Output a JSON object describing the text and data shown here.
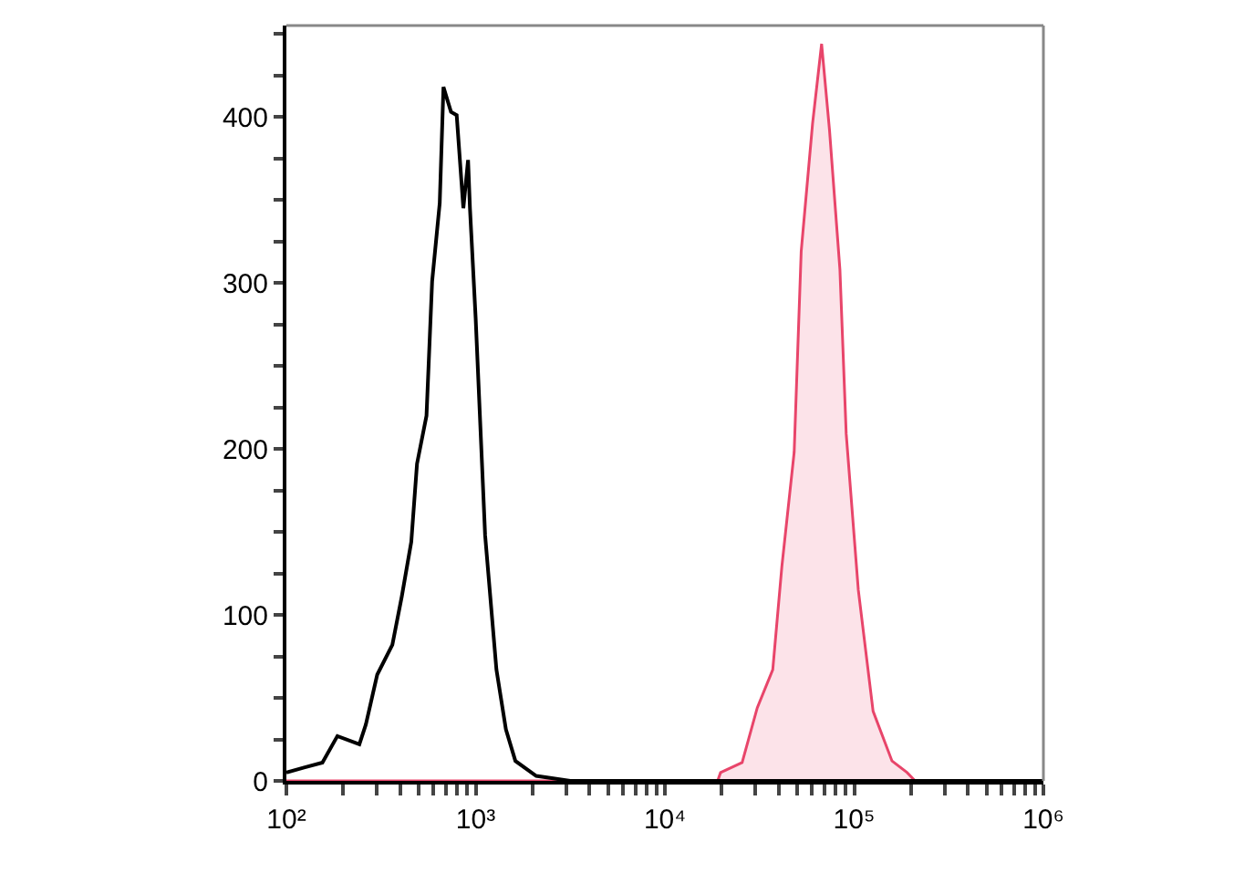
{
  "chart_data": {
    "type": "line",
    "log": "x",
    "marker": "none",
    "line_style": "solid",
    "xlim": [
      100,
      1000000
    ],
    "ylim": [
      0,
      455
    ],
    "xticks": [
      {
        "value": 100,
        "label": "10²"
      },
      {
        "value": 200,
        "label": null
      },
      {
        "value": 300,
        "label": null
      },
      {
        "value": 400,
        "label": null
      },
      {
        "value": 500,
        "label": null
      },
      {
        "value": 600,
        "label": null
      },
      {
        "value": 700,
        "label": null
      },
      {
        "value": 800,
        "label": null
      },
      {
        "value": 900,
        "label": null
      },
      {
        "value": 1000,
        "label": "10³"
      },
      {
        "value": 2000,
        "label": null
      },
      {
        "value": 3000,
        "label": null
      },
      {
        "value": 4000,
        "label": null
      },
      {
        "value": 5000,
        "label": null
      },
      {
        "value": 6000,
        "label": null
      },
      {
        "value": 7000,
        "label": null
      },
      {
        "value": 8000,
        "label": null
      },
      {
        "value": 9000,
        "label": null
      },
      {
        "value": 10000,
        "label": "10⁴"
      },
      {
        "value": 20000,
        "label": null
      },
      {
        "value": 30000,
        "label": null
      },
      {
        "value": 40000,
        "label": null
      },
      {
        "value": 50000,
        "label": null
      },
      {
        "value": 60000,
        "label": null
      },
      {
        "value": 70000,
        "label": null
      },
      {
        "value": 80000,
        "label": null
      },
      {
        "value": 90000,
        "label": null
      },
      {
        "value": 100000,
        "label": "10⁵"
      },
      {
        "value": 200000,
        "label": null
      },
      {
        "value": 300000,
        "label": null
      },
      {
        "value": 400000,
        "label": null
      },
      {
        "value": 500000,
        "label": null
      },
      {
        "value": 600000,
        "label": null
      },
      {
        "value": 700000,
        "label": null
      },
      {
        "value": 800000,
        "label": null
      },
      {
        "value": 900000,
        "label": null
      },
      {
        "value": 1000000,
        "label": "10⁶"
      }
    ],
    "yticks": [
      0,
      {
        "value": 25,
        "label": null
      },
      {
        "value": 50,
        "label": null
      },
      {
        "value": 75,
        "label": null
      },
      100,
      {
        "value": 125,
        "label": null
      },
      {
        "value": 150,
        "label": null
      },
      {
        "value": 175,
        "label": null
      },
      200,
      {
        "value": 225,
        "label": null
      },
      {
        "value": 250,
        "label": null
      },
      {
        "value": 275,
        "label": null
      },
      300,
      {
        "value": 325,
        "label": null
      },
      {
        "value": 350,
        "label": null
      },
      {
        "value": 375,
        "label": null
      },
      400,
      {
        "value": 425,
        "label": null
      },
      {
        "value": 450,
        "label": null
      }
    ],
    "series": [
      {
        "type": "area",
        "color": "#e8456a",
        "x": [
          100,
          2000,
          19000,
          19680,
          25590,
          30760,
          37150,
          41500,
          48200,
          52500,
          60300,
          67300,
          74100,
          84100,
          90800,
          105200,
          125900,
          158500,
          190500,
          210000
        ],
        "values": [
          0,
          0,
          0,
          5,
          11,
          44,
          67,
          129,
          198,
          319,
          396,
          444,
          392,
          308,
          209,
          115,
          42,
          12,
          5,
          0
        ]
      },
      {
        "color": "#000000",
        "x": [
          100,
          124,
          155,
          186,
          243,
          263,
          302,
          363,
          407,
          457,
          490,
          550,
          589,
          646,
          676,
          741,
          794,
          861,
          912,
          933,
          1000,
          1122,
          1288,
          1445,
          1622,
          2089,
          3162,
          1000000
        ],
        "values": [
          5,
          8,
          11,
          27,
          22,
          34,
          64,
          82,
          111,
          144,
          191,
          220,
          301,
          348,
          418,
          403,
          401,
          345,
          374,
          345,
          279,
          148,
          67,
          31,
          12,
          3,
          0,
          0
        ]
      }
    ]
  }
}
